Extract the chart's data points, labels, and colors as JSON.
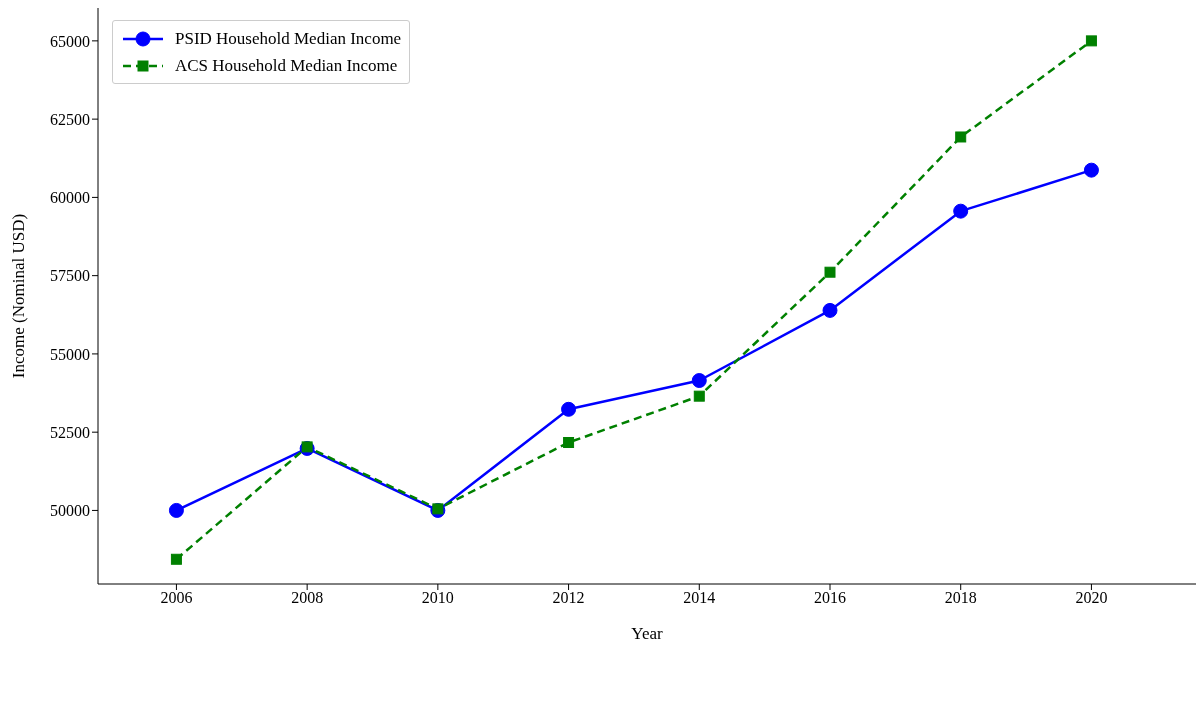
{
  "chart_data": {
    "type": "line",
    "xlabel": "Year",
    "ylabel": "Income (Nominal USD)",
    "x": [
      2006,
      2008,
      2010,
      2012,
      2014,
      2016,
      2018,
      2020
    ],
    "series": [
      {
        "name": "PSID Household Median Income",
        "color": "#0000ff",
        "marker": "circle",
        "line_style": "solid",
        "values": [
          50000,
          51980,
          50000,
          53230,
          54150,
          56390,
          59560,
          60870
        ]
      },
      {
        "name": "ACS Household Median Income",
        "color": "#008000",
        "marker": "square",
        "line_style": "dashed",
        "values": [
          48440,
          52030,
          50050,
          52170,
          53650,
          57610,
          61930,
          65000
        ]
      }
    ],
    "xlim": [
      2004.8,
      2021.6
    ],
    "xticks": [
      2006,
      2008,
      2010,
      2012,
      2014,
      2016,
      2018,
      2020
    ],
    "ylim": [
      47650,
      66050
    ],
    "yticks": [
      50000,
      52500,
      55000,
      57500,
      60000,
      62500,
      65000
    ],
    "grid": false,
    "legend": "top left"
  }
}
